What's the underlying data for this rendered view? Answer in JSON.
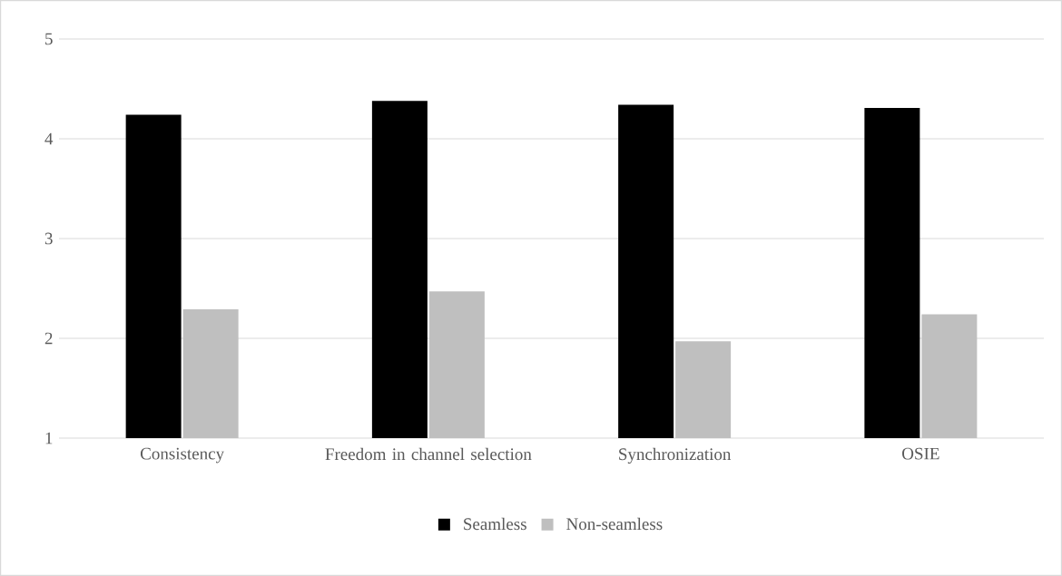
{
  "chart_data": {
    "type": "bar",
    "categories": [
      "Consistency",
      "Freedom in channel selection",
      "Synchronization",
      "OSIE"
    ],
    "series": [
      {
        "name": "Seamless",
        "color": "#000000",
        "values": [
          4.24,
          4.38,
          4.34,
          4.31
        ]
      },
      {
        "name": "Non-seamless",
        "color": "#bfbfbf",
        "values": [
          2.29,
          2.47,
          1.97,
          2.24
        ]
      }
    ],
    "ylim": [
      1,
      5
    ],
    "yticks": [
      1,
      2,
      3,
      4,
      5
    ],
    "grid": "y",
    "legend": "bottom"
  }
}
